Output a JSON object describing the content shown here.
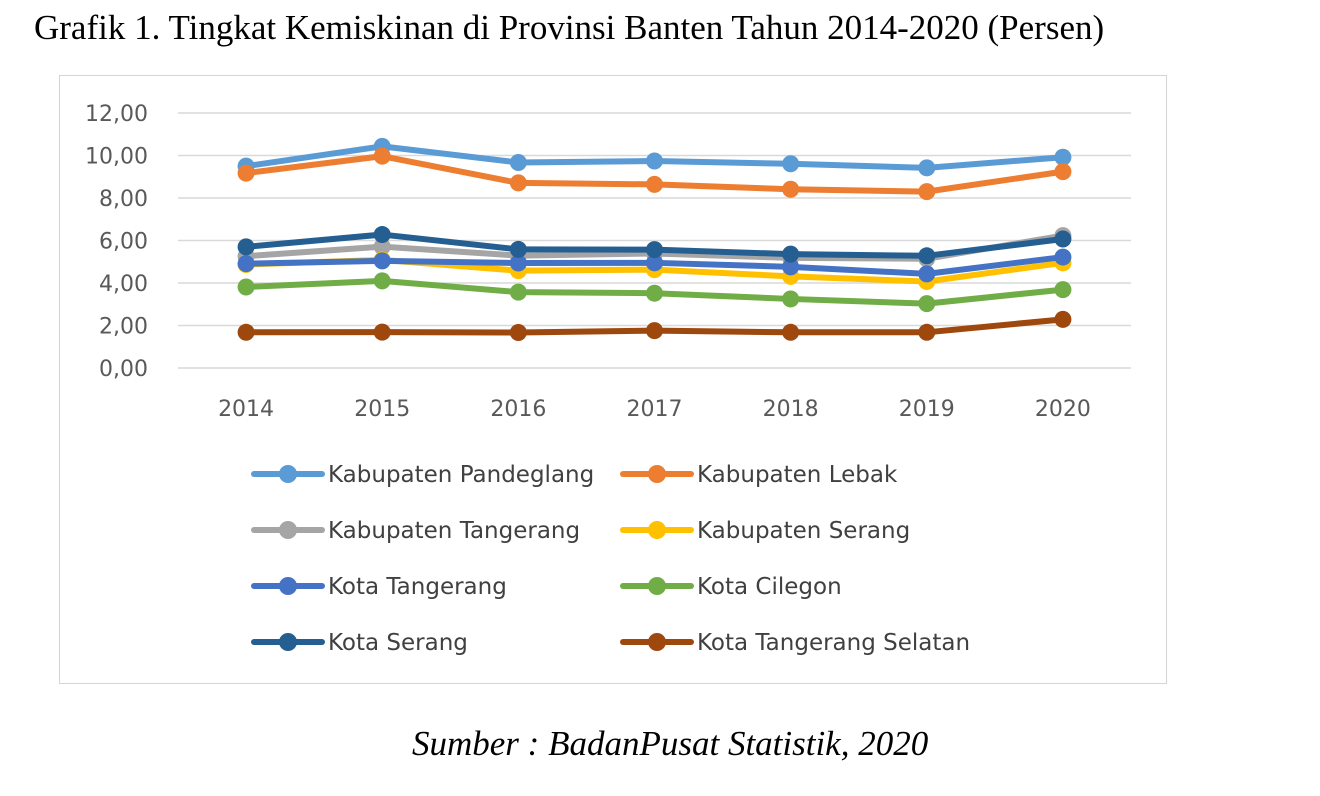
{
  "title": "Grafik 1. Tingkat Kemiskinan di Provinsi Banten Tahun 2014-2020 (Persen)",
  "source": "Sumber : BadanPusat Statistik, 2020",
  "chart_data": {
    "type": "line",
    "title": "Grafik 1. Tingkat Kemiskinan di Provinsi Banten Tahun 2014-2020 (Persen)",
    "xlabel": "",
    "ylabel": "",
    "categories": [
      "2014",
      "2015",
      "2016",
      "2017",
      "2018",
      "2019",
      "2020"
    ],
    "ylim": [
      0,
      12
    ],
    "yticks": [
      "0,00",
      "2,00",
      "4,00",
      "6,00",
      "8,00",
      "10,00",
      "12,00"
    ],
    "grid": true,
    "legend_position": "bottom",
    "series": [
      {
        "name": "Kabupaten Pandeglang",
        "color": "#5B9BD5",
        "values": [
          9.5,
          10.43,
          9.67,
          9.74,
          9.61,
          9.42,
          9.92
        ]
      },
      {
        "name": "Kabupaten Lebak",
        "color": "#ED7D31",
        "values": [
          9.17,
          9.97,
          8.71,
          8.64,
          8.41,
          8.3,
          9.24
        ]
      },
      {
        "name": "Kabupaten Tangerang",
        "color": "#A5A5A5",
        "values": [
          5.26,
          5.71,
          5.29,
          5.39,
          5.18,
          5.14,
          6.23
        ]
      },
      {
        "name": "Kabupaten Serang",
        "color": "#FFC000",
        "values": [
          4.87,
          5.09,
          4.58,
          4.63,
          4.31,
          4.07,
          4.95
        ]
      },
      {
        "name": "Kota Tangerang",
        "color": "#4472C4",
        "values": [
          4.91,
          5.04,
          4.94,
          4.95,
          4.76,
          4.43,
          5.22
        ]
      },
      {
        "name": "Kota Cilegon",
        "color": "#70AD47",
        "values": [
          3.81,
          4.1,
          3.57,
          3.52,
          3.25,
          3.03,
          3.69
        ]
      },
      {
        "name": "Kota Serang",
        "color": "#255E91",
        "values": [
          5.7,
          6.28,
          5.58,
          5.57,
          5.36,
          5.28,
          6.07
        ]
      },
      {
        "name": "Kota Tangerang Selatan",
        "color": "#9E480E",
        "values": [
          1.68,
          1.69,
          1.67,
          1.76,
          1.68,
          1.68,
          2.29
        ]
      }
    ]
  }
}
